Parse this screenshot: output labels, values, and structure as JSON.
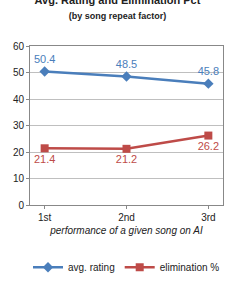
{
  "chart_data": {
    "type": "line",
    "title": "Avg. Rating and Elimination Pct",
    "subtitle": "(by song repeat factor)",
    "x_label": "performance of a given song on AI",
    "categories": [
      "1st",
      "2nd",
      "3rd"
    ],
    "series": [
      {
        "name": "avg. rating",
        "color": "#4a7ebb",
        "marker": "diamond",
        "values": [
          50.4,
          48.5,
          45.8
        ]
      },
      {
        "name": "elimination %",
        "color": "#be4b48",
        "marker": "square",
        "values": [
          21.4,
          21.2,
          26.2
        ]
      }
    ],
    "ylim": [
      0,
      60
    ],
    "yticks": [
      0,
      10,
      20,
      30,
      40,
      50,
      60
    ],
    "grid": true,
    "legend": "bottom",
    "data_labels": true
  }
}
